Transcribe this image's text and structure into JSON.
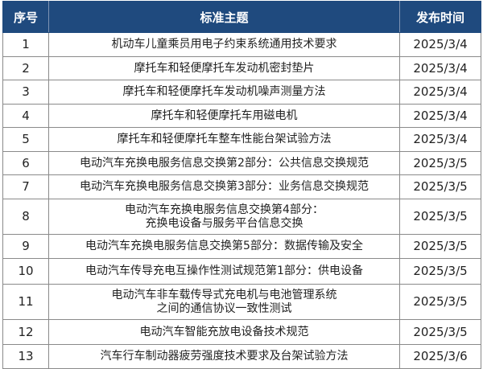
{
  "header": {
    "index": "序号",
    "title": "标准主题",
    "date": "发布时间"
  },
  "colors": {
    "header_bg": "#1f4a7e",
    "header_text": "#ffffff"
  },
  "rows": [
    {
      "index": "1",
      "title": "机动车儿童乘员用电子约束系统通用技术要求",
      "title2": "",
      "date": "2025/3/4"
    },
    {
      "index": "2",
      "title": "摩托车和轻便摩托车发动机密封垫片",
      "title2": "",
      "date": "2025/3/4"
    },
    {
      "index": "3",
      "title": "摩托车和轻便摩托车发动机噪声测量方法",
      "title2": "",
      "date": "2025/3/4"
    },
    {
      "index": "4",
      "title": "摩托车和轻便摩托车用磁电机",
      "title2": "",
      "date": "2025/3/4"
    },
    {
      "index": "5",
      "title": "摩托车和轻便摩托车整车性能台架试验方法",
      "title2": "",
      "date": "2025/3/4"
    },
    {
      "index": "6",
      "title": "电动汽车充换电服务信息交换第2部分：公共信息交换规范",
      "title2": "",
      "date": "2025/3/5"
    },
    {
      "index": "7",
      "title": "电动汽车充换电服务信息交换第3部分：业务信息交换规范",
      "title2": "",
      "date": "2025/3/5"
    },
    {
      "index": "8",
      "title": "电动汽车充换电服务信息交换第4部分：",
      "title2": "充换电设备与服务平台信息交换",
      "date": "2025/3/5"
    },
    {
      "index": "9",
      "title": "电动汽车充换电服务信息交换第5部分：数据传输及安全",
      "title2": "",
      "date": "2025/3/5"
    },
    {
      "index": "10",
      "title": "电动汽车传导充电互操作性测试规范第1部分：供电设备",
      "title2": "",
      "date": "2025/3/5"
    },
    {
      "index": "11",
      "title": "电动汽车非车载传导式充电机与电池管理系统",
      "title2": "之间的通信协议一致性测试",
      "date": "2025/3/5"
    },
    {
      "index": "12",
      "title": "电动汽车智能充放电设备技术规范",
      "title2": "",
      "date": "2025/3/5"
    },
    {
      "index": "13",
      "title": "汽车行车制动器疲劳强度技术要求及台架试验方法",
      "title2": "",
      "date": "2025/3/6"
    }
  ]
}
